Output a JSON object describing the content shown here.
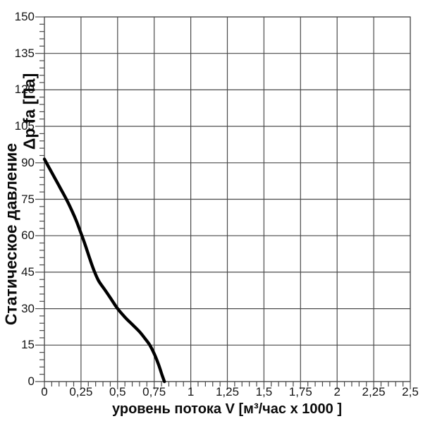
{
  "chart_data": {
    "type": "line",
    "title": "",
    "xlabel": "уровень потока  V [м³/час x 1000 ]",
    "ylabel": "Статическое давление  Δp fa [Па]",
    "ylabel_rotated_lines": [
      "Статическое давление",
      "Δp fa [Па]"
    ],
    "xlim": [
      0,
      2.5
    ],
    "ylim": [
      0,
      150
    ],
    "grid": true,
    "legend": "none",
    "x_ticks": {
      "values": [
        0,
        0.25,
        0.5,
        0.75,
        1,
        1.25,
        1.5,
        1.75,
        2,
        2.25,
        2.5
      ],
      "labels": [
        "0",
        "0,25",
        "0,5",
        "0,75",
        "1",
        "1,25",
        "1,5",
        "1,75",
        "2",
        "2,25",
        "2,5"
      ]
    },
    "y_ticks": {
      "values": [
        0,
        15,
        30,
        45,
        60,
        75,
        90,
        105,
        120,
        135,
        150
      ],
      "labels": [
        "0",
        "15",
        "30",
        "45",
        "60",
        "75",
        "90",
        "105",
        "120",
        "135",
        "150"
      ]
    },
    "x_minor_step": 0.05,
    "y_minor_step": 3,
    "colors": {
      "curve": "#000000",
      "grid": "#4a4a4a",
      "text": "#141414",
      "background": "#ffffff"
    },
    "series": [
      {
        "name": "static-pressure-curve",
        "points": [
          [
            0,
            91.5
          ],
          [
            0.05,
            86
          ],
          [
            0.1,
            80.5
          ],
          [
            0.15,
            75
          ],
          [
            0.19,
            70
          ],
          [
            0.22,
            65.8
          ],
          [
            0.25,
            61
          ],
          [
            0.28,
            56
          ],
          [
            0.31,
            50.5
          ],
          [
            0.34,
            45.5
          ],
          [
            0.37,
            41.5
          ],
          [
            0.41,
            38
          ],
          [
            0.45,
            34.5
          ],
          [
            0.5,
            30
          ],
          [
            0.55,
            26.5
          ],
          [
            0.6,
            23.5
          ],
          [
            0.65,
            20.5
          ],
          [
            0.69,
            17.5
          ],
          [
            0.72,
            15
          ],
          [
            0.75,
            11.5
          ],
          [
            0.78,
            7
          ],
          [
            0.805,
            2.5
          ],
          [
            0.82,
            0
          ]
        ]
      }
    ]
  }
}
